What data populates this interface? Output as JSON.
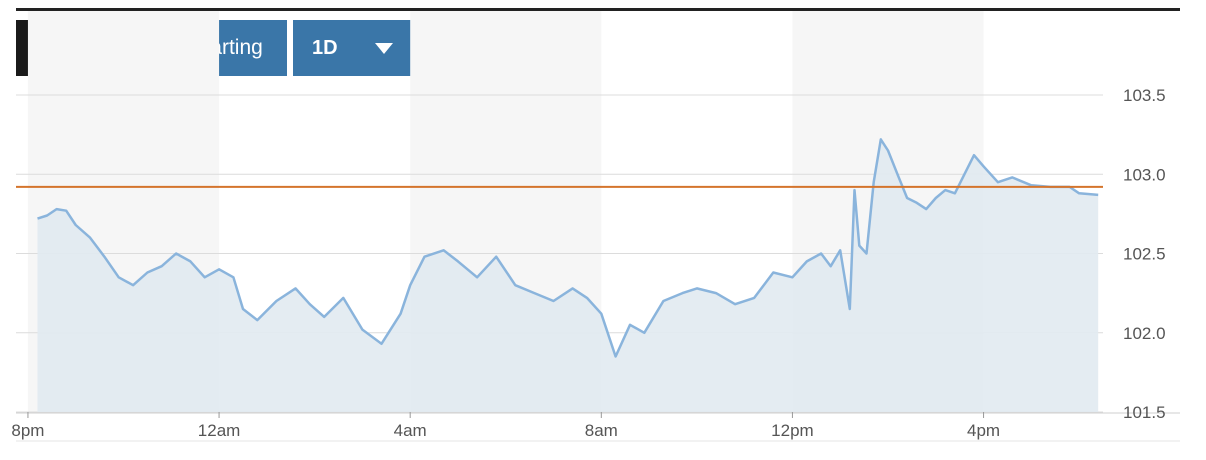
{
  "toolbar": {
    "back_glyph": "‹",
    "advanced_label": "Advanced Charting",
    "period_label": "1D",
    "dollar_label": "$",
    "percent_label": "%"
  },
  "colors": {
    "button_blue": "#3a76a8",
    "line": "#8ab4dc",
    "area": "#e1eaf1",
    "reference_line": "#d4742c"
  },
  "chart_data": {
    "type": "area",
    "ylim": [
      101.5,
      103.5
    ],
    "y_ticks": [
      101.5,
      102.0,
      102.5,
      103.0,
      103.5
    ],
    "y_tick_labels": [
      "101.5",
      "102.0",
      "102.5",
      "103.0",
      "103.5"
    ],
    "x_tick_labels": [
      "8pm",
      "12am",
      "4am",
      "8am",
      "12pm",
      "4pm"
    ],
    "x_tick_hours": [
      0,
      4,
      8,
      12,
      16,
      20
    ],
    "x_range_hours": [
      -0.25,
      22.5
    ],
    "reference_value": 102.92,
    "grid": true,
    "series": [
      {
        "x": [
          0.2,
          0.4,
          0.6,
          0.8,
          1.0,
          1.3,
          1.6,
          1.9,
          2.2,
          2.5,
          2.8,
          3.1,
          3.4,
          3.7,
          4.0,
          4.3,
          4.5,
          4.8,
          5.2,
          5.6,
          5.9,
          6.2,
          6.6,
          7.0,
          7.4,
          7.8,
          8.0,
          8.3,
          8.7,
          9.0,
          9.4,
          9.8,
          10.2,
          10.6,
          11.0,
          11.4,
          11.7,
          12.0,
          12.3,
          12.6,
          12.9,
          13.3,
          13.7,
          14.0,
          14.4,
          14.8,
          15.2,
          15.6,
          16.0,
          16.3,
          16.6,
          16.8,
          17.0,
          17.2,
          17.3,
          17.4,
          17.55,
          17.7,
          17.85,
          18.0,
          18.2,
          18.4,
          18.6,
          18.8,
          19.0,
          19.2,
          19.4,
          19.6,
          19.8,
          20.0,
          20.3,
          20.6,
          21.0,
          21.4,
          21.8,
          22.0,
          22.4
        ],
        "y": [
          102.72,
          102.74,
          102.78,
          102.77,
          102.68,
          102.6,
          102.48,
          102.35,
          102.3,
          102.38,
          102.42,
          102.5,
          102.45,
          102.35,
          102.4,
          102.35,
          102.15,
          102.08,
          102.2,
          102.28,
          102.18,
          102.1,
          102.22,
          102.02,
          101.93,
          102.12,
          102.3,
          102.48,
          102.52,
          102.45,
          102.35,
          102.48,
          102.3,
          102.25,
          102.2,
          102.28,
          102.22,
          102.12,
          101.85,
          102.05,
          102.0,
          102.2,
          102.25,
          102.28,
          102.25,
          102.18,
          102.22,
          102.38,
          102.35,
          102.45,
          102.5,
          102.42,
          102.52,
          102.15,
          102.9,
          102.55,
          102.5,
          102.95,
          103.22,
          103.15,
          103.0,
          102.85,
          102.82,
          102.78,
          102.85,
          102.9,
          102.88,
          103.0,
          103.12,
          103.05,
          102.95,
          102.98,
          102.93,
          102.92,
          102.92,
          102.88,
          102.87
        ]
      }
    ]
  }
}
